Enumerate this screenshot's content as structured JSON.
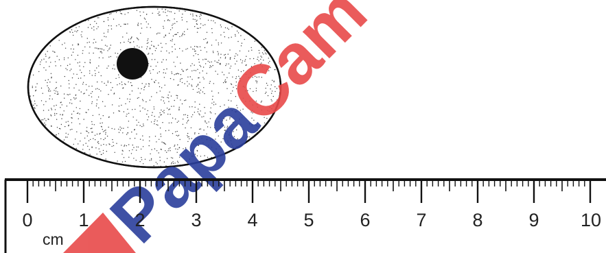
{
  "cell": {
    "description_shown": false
  },
  "ruler": {
    "unit": "cm",
    "min": 0,
    "max": 10,
    "major_labels": [
      "0",
      "1",
      "2",
      "3",
      "4",
      "5",
      "6",
      "7",
      "8",
      "9",
      "10"
    ],
    "minor_divisions_per_unit": 10
  },
  "watermark": {
    "text": "PapaCambridge",
    "colors": {
      "papa": "#2b3f9c",
      "cambridge": "#e84a4a"
    }
  },
  "colors": {
    "ink": "#111111",
    "stipple": "#3a3a3a"
  }
}
